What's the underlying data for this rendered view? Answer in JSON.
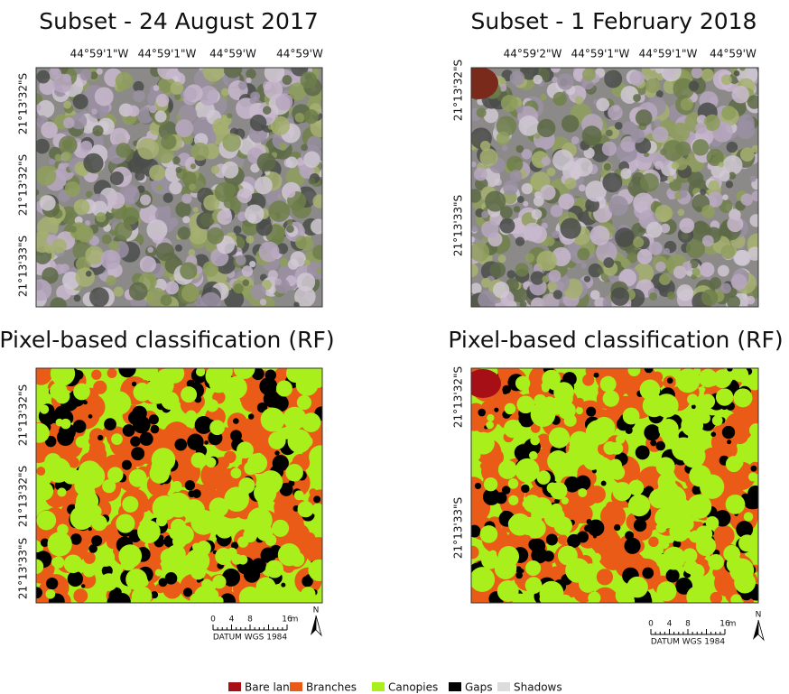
{
  "panels": [
    {
      "title": "Subset - 24 August 2017",
      "x_ticks": [
        "44°59'1\"W",
        "44°59'1\"W",
        "44°59'W",
        "44°59'W"
      ],
      "y_ticks": [
        "21°13'32\"S",
        "21°13'32\"S",
        "21°13'33\"S"
      ]
    },
    {
      "title": "Subset - 1 February 2018",
      "x_ticks": [
        "44°59'2\"W",
        "44°59'1\"W",
        "44°59'1\"W",
        "44°59'W"
      ],
      "y_ticks": [
        "21°13'32\"S",
        "21°13'33\"S"
      ]
    },
    {
      "title": "Pixel-based classification (RF)",
      "y_ticks": [
        "21°13'32\"S",
        "21°13'32\"S",
        "21°13'33\"S"
      ]
    },
    {
      "title": "Pixel-based classification (RF)",
      "y_ticks": [
        "21°13'32\"S",
        "21°13'33\"S"
      ]
    }
  ],
  "scale_bars": [
    {
      "ticks": [
        "0",
        "4",
        "8",
        "16"
      ],
      "unit": "m",
      "datum": "DATUM WGS 1984",
      "north": "N"
    },
    {
      "ticks": [
        "0",
        "4",
        "8",
        "16"
      ],
      "unit": "m",
      "datum": "DATUM WGS 1984",
      "north": "N"
    }
  ],
  "legend": [
    {
      "label": "Bare land",
      "color": "#a50f15"
    },
    {
      "label": "Branches",
      "color": "#ea5b17"
    },
    {
      "label": "Canopies",
      "color": "#a8ef1c"
    },
    {
      "label": "Gaps",
      "color": "#000000"
    },
    {
      "label": "Shadows",
      "color": "#dcdcdc"
    }
  ]
}
